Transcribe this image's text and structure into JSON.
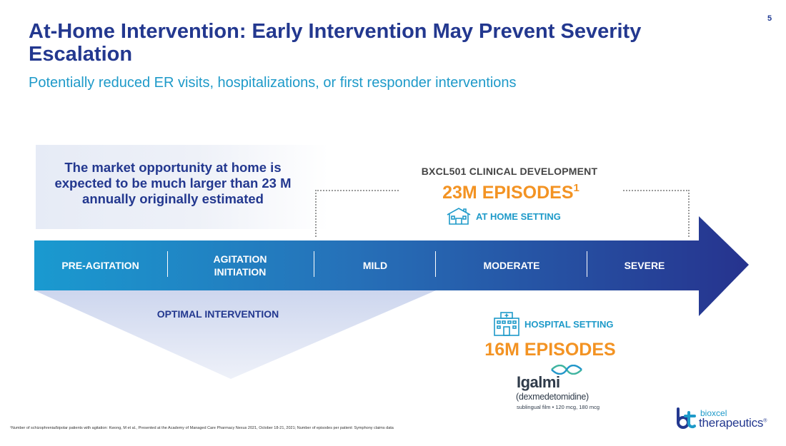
{
  "slide": {
    "page_number": "5",
    "title": "At-Home Intervention: Early Intervention May Prevent Severity Escalation",
    "subtitle": "Potentially reduced ER visits, hospitalizations, or first responder interventions"
  },
  "callout": {
    "text": "The market opportunity at home is expected to be much larger than 23 M annually originally estimated"
  },
  "clinical_development": {
    "heading": "BXCL501 CLINICAL DEVELOPMENT",
    "episodes": "23M EPISODES",
    "episodes_footnote_mark": "1",
    "setting_label": "AT HOME SETTING"
  },
  "stages": [
    {
      "label": "PRE-AGITATION"
    },
    {
      "label": "AGITATION INITIATION"
    },
    {
      "label": "MILD"
    },
    {
      "label": "MODERATE"
    },
    {
      "label": "SEVERE"
    }
  ],
  "optimal": {
    "label": "OPTIMAL INTERVENTION"
  },
  "hospital": {
    "setting_label": "HOSPITAL SETTING",
    "episodes": "16M EPISODES"
  },
  "product": {
    "brand": "Igalmi",
    "generic": "(dexmedetomidine)",
    "dosage": "sublingual film • 120 mcg, 180 mcg"
  },
  "footnote": "¹Number of schizophrenia/bipolar patients with agitation: Kwong, M et al., Presented at the Academy of Managed Care Pharmacy Nexus 2021, October 18-21, 2021; Number of episodes per patient: Symphony claims data",
  "company": {
    "name_top": "bioxcel",
    "name_bottom": "therapeutics"
  },
  "colors": {
    "navy": "#23388f",
    "cyan": "#1e9ac9",
    "orange": "#f39323"
  }
}
